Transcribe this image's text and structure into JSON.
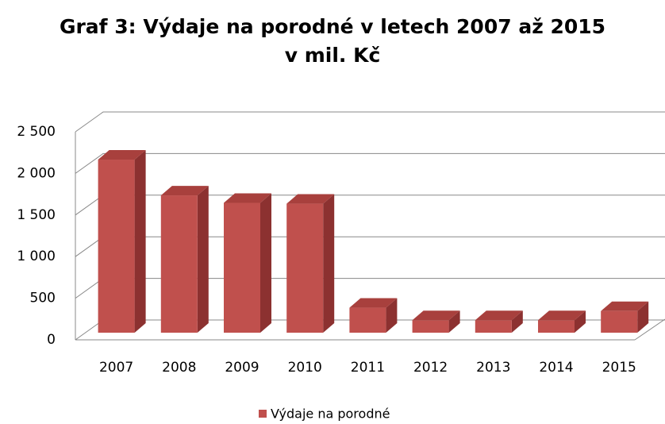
{
  "chart_data": {
    "type": "bar3d",
    "title": "Graf 3: Výdaje na porodné v letech 2007 až 2015\nv mil. Kč",
    "categories": [
      "2007",
      "2008",
      "2009",
      "2010",
      "2011",
      "2012",
      "2013",
      "2014",
      "2015"
    ],
    "series": [
      {
        "name": "Výdaje na porodné",
        "color": "#c0504d",
        "values": [
          2080,
          1650,
          1560,
          1550,
          300,
          150,
          150,
          150,
          260
        ]
      }
    ],
    "ylim": [
      0,
      2500
    ],
    "yticks": [
      0,
      500,
      {
        "value": 1000,
        "label": "1 000"
      },
      {
        "value": 1500,
        "label": "1 500"
      },
      {
        "value": 2000,
        "label": "2 000"
      },
      {
        "value": 2500,
        "label": "2 500"
      }
    ],
    "grid": true,
    "legend": "bottom"
  }
}
